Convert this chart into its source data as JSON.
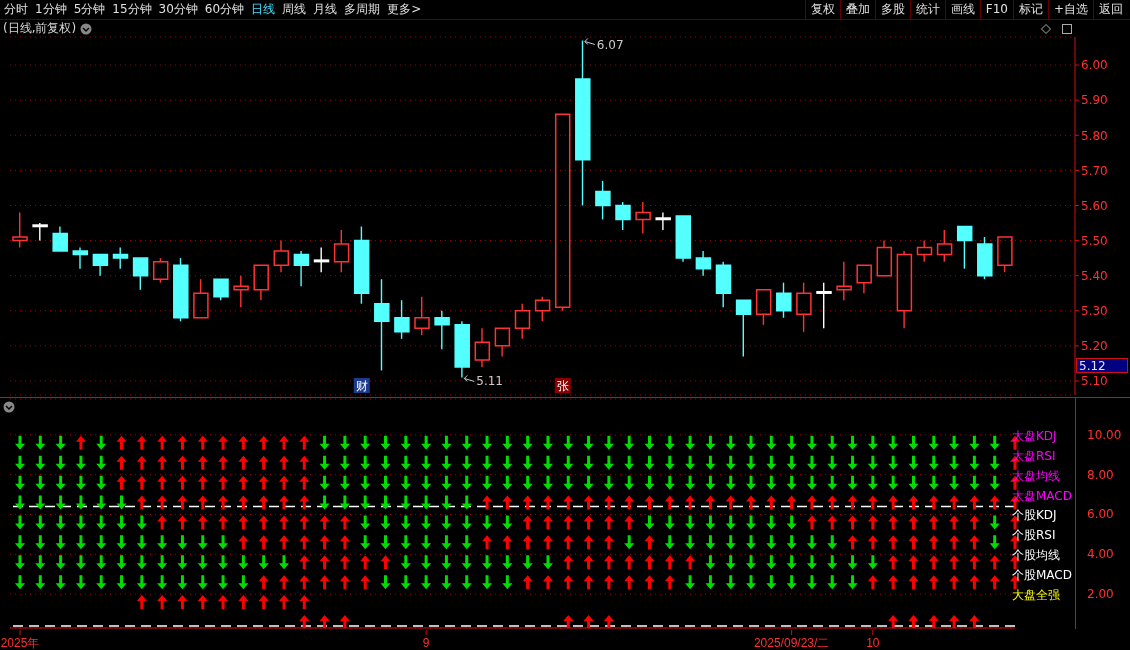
{
  "chart_data": [
    {
      "type": "candlestick",
      "title": "(日线,前复权)",
      "ohlc": [
        [
          5.5,
          5.58,
          5.48,
          5.51
        ],
        [
          5.54,
          5.55,
          5.5,
          5.54
        ],
        [
          5.52,
          5.54,
          5.47,
          5.47
        ],
        [
          5.47,
          5.48,
          5.42,
          5.46
        ],
        [
          5.46,
          5.46,
          5.4,
          5.43
        ],
        [
          5.46,
          5.48,
          5.42,
          5.45
        ],
        [
          5.45,
          5.45,
          5.36,
          5.4
        ],
        [
          5.39,
          5.45,
          5.38,
          5.44
        ],
        [
          5.43,
          5.45,
          5.27,
          5.28
        ],
        [
          5.28,
          5.39,
          5.28,
          5.35
        ],
        [
          5.39,
          5.39,
          5.33,
          5.34
        ],
        [
          5.36,
          5.4,
          5.31,
          5.37
        ],
        [
          5.36,
          5.43,
          5.33,
          5.43
        ],
        [
          5.43,
          5.5,
          5.41,
          5.47
        ],
        [
          5.46,
          5.47,
          5.37,
          5.43
        ],
        [
          5.44,
          5.48,
          5.41,
          5.44
        ],
        [
          5.44,
          5.53,
          5.41,
          5.49
        ],
        [
          5.5,
          5.54,
          5.32,
          5.35
        ],
        [
          5.32,
          5.39,
          5.13,
          5.27
        ],
        [
          5.28,
          5.33,
          5.22,
          5.24
        ],
        [
          5.25,
          5.34,
          5.23,
          5.28
        ],
        [
          5.28,
          5.3,
          5.19,
          5.26
        ],
        [
          5.26,
          5.27,
          5.11,
          5.14
        ],
        [
          5.16,
          5.25,
          5.14,
          5.21
        ],
        [
          5.2,
          5.25,
          5.17,
          5.25
        ],
        [
          5.25,
          5.32,
          5.22,
          5.3
        ],
        [
          5.3,
          5.34,
          5.27,
          5.33
        ],
        [
          5.31,
          5.86,
          5.3,
          5.86
        ],
        [
          5.96,
          6.07,
          5.6,
          5.73
        ],
        [
          5.64,
          5.67,
          5.56,
          5.6
        ],
        [
          5.6,
          5.61,
          5.53,
          5.56
        ],
        [
          5.56,
          5.61,
          5.52,
          5.58
        ],
        [
          5.56,
          5.58,
          5.53,
          5.56
        ],
        [
          5.57,
          5.57,
          5.44,
          5.45
        ],
        [
          5.45,
          5.47,
          5.4,
          5.42
        ],
        [
          5.43,
          5.44,
          5.31,
          5.35
        ],
        [
          5.33,
          5.33,
          5.17,
          5.29
        ],
        [
          5.29,
          5.36,
          5.26,
          5.36
        ],
        [
          5.35,
          5.38,
          5.28,
          5.3
        ],
        [
          5.29,
          5.38,
          5.24,
          5.35
        ],
        [
          5.35,
          5.38,
          5.25,
          5.35
        ],
        [
          5.36,
          5.44,
          5.33,
          5.37
        ],
        [
          5.38,
          5.43,
          5.35,
          5.43
        ],
        [
          5.4,
          5.5,
          5.4,
          5.48
        ],
        [
          5.3,
          5.47,
          5.25,
          5.46
        ],
        [
          5.46,
          5.5,
          5.44,
          5.48
        ],
        [
          5.46,
          5.53,
          5.44,
          5.49
        ],
        [
          5.54,
          5.54,
          5.42,
          5.5
        ],
        [
          5.49,
          5.51,
          5.39,
          5.4
        ],
        [
          5.43,
          5.51,
          5.41,
          5.51
        ]
      ],
      "colors": [
        "#ff3232",
        "#ffffff",
        "#54ffff",
        "#54ffff",
        "#54ffff",
        "#54ffff",
        "#54ffff",
        "#ff3232",
        "#54ffff",
        "#ff3232",
        "#54ffff",
        "#ff3232",
        "#ff3232",
        "#ff3232",
        "#54ffff",
        "#ffffff",
        "#ff3232",
        "#54ffff",
        "#54ffff",
        "#54ffff",
        "#ff3232",
        "#54ffff",
        "#54ffff",
        "#ff3232",
        "#ff3232",
        "#ff3232",
        "#ff3232",
        "#ff3232",
        "#54ffff",
        "#54ffff",
        "#54ffff",
        "#ff3232",
        "#ffffff",
        "#54ffff",
        "#54ffff",
        "#54ffff",
        "#54ffff",
        "#ff3232",
        "#54ffff",
        "#ff3232",
        "#ffffff",
        "#ff3232",
        "#ff3232",
        "#ff3232",
        "#ff3232",
        "#ff3232",
        "#ff3232",
        "#54ffff",
        "#54ffff",
        "#ff3232"
      ],
      "ylim": [
        5.06,
        6.08
      ],
      "yticks": [
        {
          "value": 5.1,
          "label": "5.10"
        },
        {
          "value": 5.2,
          "label": "5.20"
        },
        {
          "value": 5.3,
          "label": "5.30"
        },
        {
          "value": 5.4,
          "label": "5.40"
        },
        {
          "value": 5.5,
          "label": "5.50"
        },
        {
          "value": 5.6,
          "label": "5.60"
        },
        {
          "value": 5.7,
          "label": "5.70"
        },
        {
          "value": 5.8,
          "label": "5.80"
        },
        {
          "value": 5.9,
          "label": "5.90"
        },
        {
          "value": 6.0,
          "label": "6.00"
        }
      ],
      "grid": "y",
      "tick_labels": "y",
      "annotations": [
        "分时",
        "1分钟",
        "5分钟",
        "15分钟",
        "30分钟",
        "60分钟",
        "日线",
        "周线",
        "月线",
        "多周期",
        "更多>",
        "复权",
        "叠加",
        "多股",
        "统计",
        "画线",
        "F10",
        "标记",
        "+自选",
        "返回",
        "财",
        "张",
        "6.07",
        "5.11",
        "5.12"
      ]
    },
    {
      "type": "scatter",
      "categories": [
        "2025年",
        null,
        null,
        null,
        null,
        null,
        null,
        null,
        null,
        null,
        null,
        null,
        null,
        null,
        null,
        null,
        null,
        null,
        null,
        null,
        "9",
        null,
        null,
        null,
        null,
        null,
        null,
        null,
        null,
        null,
        null,
        null,
        null,
        null,
        null,
        null,
        null,
        null,
        "2025/09/23/二",
        null,
        null,
        null,
        "10",
        null,
        null,
        null,
        null,
        null,
        null,
        null
      ],
      "ylim": [
        0.3,
        11.8
      ],
      "yticks": [
        {
          "value": 2,
          "label": "2.00"
        },
        {
          "value": 4,
          "label": "4.00"
        },
        {
          "value": 6,
          "label": "6.00"
        },
        {
          "value": 8,
          "label": "8.00"
        },
        {
          "value": 10,
          "label": "10.00"
        }
      ],
      "grid": "y",
      "ref_lines": [
        {
          "axis": "y",
          "value": 6.4,
          "color": "#ffffff",
          "line_style": "dashed"
        },
        {
          "axis": "y",
          "value": 0.4,
          "color": "#ffffff",
          "line_style": "dashed"
        }
      ],
      "series": [
        {
          "name": "大盘KDJ",
          "color": "#ff00ff",
          "values": [
            9.6,
            9.6,
            9.6,
            9.6,
            9.6,
            9.6,
            9.6,
            9.6,
            9.6,
            9.6,
            9.6,
            9.6,
            9.6,
            9.6,
            9.6,
            9.6,
            9.6,
            9.6,
            9.6,
            9.6,
            9.6,
            9.6,
            9.6,
            9.6,
            9.6,
            9.6,
            9.6,
            9.6,
            9.6,
            9.6,
            9.6,
            9.6,
            9.6,
            9.6,
            9.6,
            9.6,
            9.6,
            9.6,
            9.6,
            9.6,
            9.6,
            9.6,
            9.6,
            9.6,
            9.6,
            9.6,
            9.6,
            9.6,
            9.6,
            9.6
          ],
          "colors": [
            "#00dd00",
            "#00dd00",
            "#00dd00",
            "#ff0000",
            "#00dd00",
            "#ff0000",
            "#ff0000",
            "#ff0000",
            "#ff0000",
            "#ff0000",
            "#ff0000",
            "#ff0000",
            "#ff0000",
            "#ff0000",
            "#ff0000",
            "#00dd00",
            "#00dd00",
            "#00dd00",
            "#00dd00",
            "#00dd00",
            "#00dd00",
            "#00dd00",
            "#00dd00",
            "#00dd00",
            "#00dd00",
            "#00dd00",
            "#00dd00",
            "#00dd00",
            "#00dd00",
            "#00dd00",
            "#00dd00",
            "#00dd00",
            "#00dd00",
            "#00dd00",
            "#00dd00",
            "#00dd00",
            "#00dd00",
            "#00dd00",
            "#00dd00",
            "#00dd00",
            "#00dd00",
            "#00dd00",
            "#00dd00",
            "#00dd00",
            "#00dd00",
            "#00dd00",
            "#00dd00",
            "#00dd00",
            "#00dd00",
            "#ff0000"
          ]
        },
        {
          "name": "大盘RSI",
          "color": "#ff00ff",
          "values": [
            8.6,
            8.6,
            8.6,
            8.6,
            8.6,
            8.6,
            8.6,
            8.6,
            8.6,
            8.6,
            8.6,
            8.6,
            8.6,
            8.6,
            8.6,
            8.6,
            8.6,
            8.6,
            8.6,
            8.6,
            8.6,
            8.6,
            8.6,
            8.6,
            8.6,
            8.6,
            8.6,
            8.6,
            8.6,
            8.6,
            8.6,
            8.6,
            8.6,
            8.6,
            8.6,
            8.6,
            8.6,
            8.6,
            8.6,
            8.6,
            8.6,
            8.6,
            8.6,
            8.6,
            8.6,
            8.6,
            8.6,
            8.6,
            8.6,
            8.6
          ],
          "colors": [
            "#00dd00",
            "#00dd00",
            "#00dd00",
            "#00dd00",
            "#00dd00",
            "#ff0000",
            "#ff0000",
            "#ff0000",
            "#ff0000",
            "#ff0000",
            "#ff0000",
            "#ff0000",
            "#ff0000",
            "#ff0000",
            "#ff0000",
            "#00dd00",
            "#00dd00",
            "#00dd00",
            "#00dd00",
            "#00dd00",
            "#00dd00",
            "#00dd00",
            "#00dd00",
            "#00dd00",
            "#00dd00",
            "#00dd00",
            "#00dd00",
            "#00dd00",
            "#00dd00",
            "#00dd00",
            "#00dd00",
            "#00dd00",
            "#00dd00",
            "#00dd00",
            "#00dd00",
            "#00dd00",
            "#00dd00",
            "#00dd00",
            "#00dd00",
            "#00dd00",
            "#00dd00",
            "#00dd00",
            "#00dd00",
            "#00dd00",
            "#00dd00",
            "#00dd00",
            "#00dd00",
            "#00dd00",
            "#00dd00",
            "#ff0000"
          ]
        },
        {
          "name": "大盘均线",
          "color": "#ff00ff",
          "values": [
            7.6,
            7.6,
            7.6,
            7.6,
            7.6,
            7.6,
            7.6,
            7.6,
            7.6,
            7.6,
            7.6,
            7.6,
            7.6,
            7.6,
            7.6,
            7.6,
            7.6,
            7.6,
            7.6,
            7.6,
            7.6,
            7.6,
            7.6,
            7.6,
            7.6,
            7.6,
            7.6,
            7.6,
            7.6,
            7.6,
            7.6,
            7.6,
            7.6,
            7.6,
            7.6,
            7.6,
            7.6,
            7.6,
            7.6,
            7.6,
            7.6,
            7.6,
            7.6,
            7.6,
            7.6,
            7.6,
            7.6,
            7.6,
            7.6,
            7.6
          ],
          "colors": [
            "#00dd00",
            "#00dd00",
            "#00dd00",
            "#00dd00",
            "#00dd00",
            "#ff0000",
            "#ff0000",
            "#ff0000",
            "#ff0000",
            "#ff0000",
            "#ff0000",
            "#ff0000",
            "#ff0000",
            "#ff0000",
            "#ff0000",
            "#00dd00",
            "#00dd00",
            "#00dd00",
            "#00dd00",
            "#00dd00",
            "#00dd00",
            "#00dd00",
            "#00dd00",
            "#00dd00",
            "#00dd00",
            "#00dd00",
            "#00dd00",
            "#00dd00",
            "#00dd00",
            "#00dd00",
            "#00dd00",
            "#00dd00",
            "#00dd00",
            "#00dd00",
            "#00dd00",
            "#00dd00",
            "#00dd00",
            "#00dd00",
            "#00dd00",
            "#00dd00",
            "#00dd00",
            "#00dd00",
            "#00dd00",
            "#00dd00",
            "#00dd00",
            "#00dd00",
            "#00dd00",
            "#00dd00",
            "#00dd00",
            "#ff0000"
          ]
        },
        {
          "name": "大盘MACD",
          "color": "#ff00ff",
          "values": [
            6.6,
            6.6,
            6.6,
            6.6,
            6.6,
            6.6,
            6.6,
            6.6,
            6.6,
            6.6,
            6.6,
            6.6,
            6.6,
            6.6,
            6.6,
            6.6,
            6.6,
            6.6,
            6.6,
            6.6,
            6.6,
            6.6,
            6.6,
            6.6,
            6.6,
            6.6,
            6.6,
            6.6,
            6.6,
            6.6,
            6.6,
            6.6,
            6.6,
            6.6,
            6.6,
            6.6,
            6.6,
            6.6,
            6.6,
            6.6,
            6.6,
            6.6,
            6.6,
            6.6,
            6.6,
            6.6,
            6.6,
            6.6,
            6.6,
            6.6
          ],
          "colors": [
            "#00dd00",
            "#00dd00",
            "#00dd00",
            "#00dd00",
            "#00dd00",
            "#00dd00",
            "#ff0000",
            "#ff0000",
            "#ff0000",
            "#ff0000",
            "#ff0000",
            "#ff0000",
            "#ff0000",
            "#ff0000",
            "#ff0000",
            "#00dd00",
            "#00dd00",
            "#00dd00",
            "#00dd00",
            "#00dd00",
            "#00dd00",
            "#00dd00",
            "#00dd00",
            "#ff0000",
            "#ff0000",
            "#ff0000",
            "#ff0000",
            "#ff0000",
            "#ff0000",
            "#ff0000",
            "#ff0000",
            "#ff0000",
            "#ff0000",
            "#ff0000",
            "#ff0000",
            "#ff0000",
            "#ff0000",
            "#ff0000",
            "#ff0000",
            "#ff0000",
            "#ff0000",
            "#ff0000",
            "#ff0000",
            "#ff0000",
            "#ff0000",
            "#ff0000",
            "#ff0000",
            "#ff0000",
            "#ff0000",
            "#ff0000"
          ]
        },
        {
          "name": "个股KDJ",
          "color": "#ffffff",
          "values": [
            5.6,
            5.6,
            5.6,
            5.6,
            5.6,
            5.6,
            5.6,
            5.6,
            5.6,
            5.6,
            5.6,
            5.6,
            5.6,
            5.6,
            5.6,
            5.6,
            5.6,
            5.6,
            5.6,
            5.6,
            5.6,
            5.6,
            5.6,
            5.6,
            5.6,
            5.6,
            5.6,
            5.6,
            5.6,
            5.6,
            5.6,
            5.6,
            5.6,
            5.6,
            5.6,
            5.6,
            5.6,
            5.6,
            5.6,
            5.6,
            5.6,
            5.6,
            5.6,
            5.6,
            5.6,
            5.6,
            5.6,
            5.6,
            5.6,
            5.6
          ],
          "colors": [
            "#00dd00",
            "#00dd00",
            "#00dd00",
            "#00dd00",
            "#00dd00",
            "#00dd00",
            "#00dd00",
            "#ff0000",
            "#ff0000",
            "#ff0000",
            "#ff0000",
            "#ff0000",
            "#ff0000",
            "#ff0000",
            "#ff0000",
            "#ff0000",
            "#ff0000",
            "#00dd00",
            "#00dd00",
            "#00dd00",
            "#00dd00",
            "#00dd00",
            "#00dd00",
            "#00dd00",
            "#00dd00",
            "#ff0000",
            "#ff0000",
            "#ff0000",
            "#ff0000",
            "#ff0000",
            "#ff0000",
            "#00dd00",
            "#00dd00",
            "#00dd00",
            "#00dd00",
            "#00dd00",
            "#00dd00",
            "#00dd00",
            "#00dd00",
            "#ff0000",
            "#ff0000",
            "#ff0000",
            "#ff0000",
            "#ff0000",
            "#ff0000",
            "#ff0000",
            "#ff0000",
            "#ff0000",
            "#00dd00",
            "#ff0000"
          ]
        },
        {
          "name": "个股RSI",
          "color": "#ffffff",
          "values": [
            4.6,
            4.6,
            4.6,
            4.6,
            4.6,
            4.6,
            4.6,
            4.6,
            4.6,
            4.6,
            4.6,
            4.6,
            4.6,
            4.6,
            4.6,
            4.6,
            4.6,
            4.6,
            4.6,
            4.6,
            4.6,
            4.6,
            4.6,
            4.6,
            4.6,
            4.6,
            4.6,
            4.6,
            4.6,
            4.6,
            4.6,
            4.6,
            4.6,
            4.6,
            4.6,
            4.6,
            4.6,
            4.6,
            4.6,
            4.6,
            4.6,
            4.6,
            4.6,
            4.6,
            4.6,
            4.6,
            4.6,
            4.6,
            4.6,
            4.6
          ],
          "colors": [
            "#00dd00",
            "#00dd00",
            "#00dd00",
            "#00dd00",
            "#00dd00",
            "#00dd00",
            "#00dd00",
            "#00dd00",
            "#00dd00",
            "#00dd00",
            "#00dd00",
            "#ff0000",
            "#ff0000",
            "#ff0000",
            "#ff0000",
            "#ff0000",
            "#ff0000",
            "#00dd00",
            "#00dd00",
            "#00dd00",
            "#00dd00",
            "#00dd00",
            "#00dd00",
            "#ff0000",
            "#ff0000",
            "#ff0000",
            "#ff0000",
            "#ff0000",
            "#ff0000",
            "#ff0000",
            "#00dd00",
            "#ff0000",
            "#00dd00",
            "#00dd00",
            "#00dd00",
            "#00dd00",
            "#00dd00",
            "#00dd00",
            "#00dd00",
            "#00dd00",
            "#00dd00",
            "#ff0000",
            "#ff0000",
            "#ff0000",
            "#ff0000",
            "#ff0000",
            "#ff0000",
            "#ff0000",
            "#00dd00",
            "#ff0000"
          ]
        },
        {
          "name": "个股均线",
          "color": "#ffffff",
          "values": [
            3.6,
            3.6,
            3.6,
            3.6,
            3.6,
            3.6,
            3.6,
            3.6,
            3.6,
            3.6,
            3.6,
            3.6,
            3.6,
            3.6,
            3.6,
            3.6,
            3.6,
            3.6,
            3.6,
            3.6,
            3.6,
            3.6,
            3.6,
            3.6,
            3.6,
            3.6,
            3.6,
            3.6,
            3.6,
            3.6,
            3.6,
            3.6,
            3.6,
            3.6,
            3.6,
            3.6,
            3.6,
            3.6,
            3.6,
            3.6,
            3.6,
            3.6,
            3.6,
            3.6,
            3.6,
            3.6,
            3.6,
            3.6,
            3.6,
            3.6
          ],
          "colors": [
            "#00dd00",
            "#00dd00",
            "#00dd00",
            "#00dd00",
            "#00dd00",
            "#00dd00",
            "#00dd00",
            "#00dd00",
            "#00dd00",
            "#00dd00",
            "#00dd00",
            "#00dd00",
            "#00dd00",
            "#00dd00",
            "#ff0000",
            "#ff0000",
            "#ff0000",
            "#ff0000",
            "#ff0000",
            "#00dd00",
            "#00dd00",
            "#00dd00",
            "#00dd00",
            "#00dd00",
            "#00dd00",
            "#00dd00",
            "#00dd00",
            "#ff0000",
            "#ff0000",
            "#ff0000",
            "#ff0000",
            "#ff0000",
            "#ff0000",
            "#ff0000",
            "#00dd00",
            "#00dd00",
            "#00dd00",
            "#00dd00",
            "#00dd00",
            "#00dd00",
            "#00dd00",
            "#00dd00",
            "#00dd00",
            "#ff0000",
            "#ff0000",
            "#ff0000",
            "#ff0000",
            "#ff0000",
            "#ff0000",
            "#ff0000"
          ]
        },
        {
          "name": "个股MACD",
          "color": "#ffffff",
          "values": [
            2.6,
            2.6,
            2.6,
            2.6,
            2.6,
            2.6,
            2.6,
            2.6,
            2.6,
            2.6,
            2.6,
            2.6,
            2.6,
            2.6,
            2.6,
            2.6,
            2.6,
            2.6,
            2.6,
            2.6,
            2.6,
            2.6,
            2.6,
            2.6,
            2.6,
            2.6,
            2.6,
            2.6,
            2.6,
            2.6,
            2.6,
            2.6,
            2.6,
            2.6,
            2.6,
            2.6,
            2.6,
            2.6,
            2.6,
            2.6,
            2.6,
            2.6,
            2.6,
            2.6,
            2.6,
            2.6,
            2.6,
            2.6,
            2.6,
            2.6
          ],
          "colors": [
            "#00dd00",
            "#00dd00",
            "#00dd00",
            "#00dd00",
            "#00dd00",
            "#00dd00",
            "#00dd00",
            "#00dd00",
            "#00dd00",
            "#00dd00",
            "#00dd00",
            "#00dd00",
            "#ff0000",
            "#ff0000",
            "#ff0000",
            "#ff0000",
            "#ff0000",
            "#ff0000",
            "#00dd00",
            "#00dd00",
            "#00dd00",
            "#00dd00",
            "#00dd00",
            "#00dd00",
            "#00dd00",
            "#ff0000",
            "#ff0000",
            "#ff0000",
            "#ff0000",
            "#ff0000",
            "#ff0000",
            "#ff0000",
            "#ff0000",
            "#00dd00",
            "#00dd00",
            "#00dd00",
            "#00dd00",
            "#00dd00",
            "#00dd00",
            "#00dd00",
            "#00dd00",
            "#00dd00",
            "#ff0000",
            "#ff0000",
            "#ff0000",
            "#ff0000",
            "#ff0000",
            "#ff0000",
            "#ff0000",
            "#ff0000"
          ]
        },
        {
          "name": "大盘全强",
          "color": "#ffff00",
          "values": [
            null,
            null,
            null,
            null,
            null,
            null,
            1.6,
            1.6,
            1.6,
            1.6,
            1.6,
            1.6,
            1.6,
            1.6,
            1.6,
            null,
            null,
            null,
            null,
            null,
            null,
            null,
            null,
            null,
            null,
            null,
            null,
            null,
            null,
            null,
            null,
            null,
            null,
            null,
            null,
            null,
            null,
            null,
            null,
            null,
            null,
            null,
            null,
            null,
            null,
            null,
            null,
            null,
            null,
            null
          ],
          "colors": [
            null,
            null,
            null,
            null,
            null,
            null,
            "#ff0000",
            "#ff0000",
            "#ff0000",
            "#ff0000",
            "#ff0000",
            "#ff0000",
            "#ff0000",
            "#ff0000",
            "#ff0000",
            null,
            null,
            null,
            null,
            null,
            null,
            null,
            null,
            null,
            null,
            null,
            null,
            null,
            null,
            null,
            null,
            null,
            null,
            null,
            null,
            null,
            null,
            null,
            null,
            null,
            null,
            null,
            null,
            null,
            null,
            null,
            null,
            null,
            null,
            null
          ]
        },
        {
          "values": [
            null,
            null,
            null,
            null,
            null,
            null,
            null,
            null,
            null,
            null,
            null,
            null,
            null,
            null,
            0.6,
            0.6,
            0.6,
            null,
            null,
            null,
            null,
            null,
            null,
            null,
            null,
            null,
            null,
            0.6,
            0.6,
            0.6,
            null,
            null,
            null,
            null,
            null,
            null,
            null,
            null,
            null,
            null,
            null,
            null,
            null,
            0.6,
            0.6,
            0.6,
            0.6,
            0.6,
            null,
            null
          ],
          "colors": [
            null,
            null,
            null,
            null,
            null,
            null,
            null,
            null,
            null,
            null,
            null,
            null,
            null,
            null,
            "#ff0000",
            "#ff0000",
            "#ff0000",
            null,
            null,
            null,
            null,
            null,
            null,
            null,
            null,
            null,
            null,
            "#ff0000",
            "#ff0000",
            "#ff0000",
            null,
            null,
            null,
            null,
            null,
            null,
            null,
            null,
            null,
            null,
            null,
            null,
            null,
            "#ff0000",
            "#ff0000",
            "#ff0000",
            "#ff0000",
            "#ff0000",
            null,
            null
          ]
        }
      ]
    }
  ]
}
